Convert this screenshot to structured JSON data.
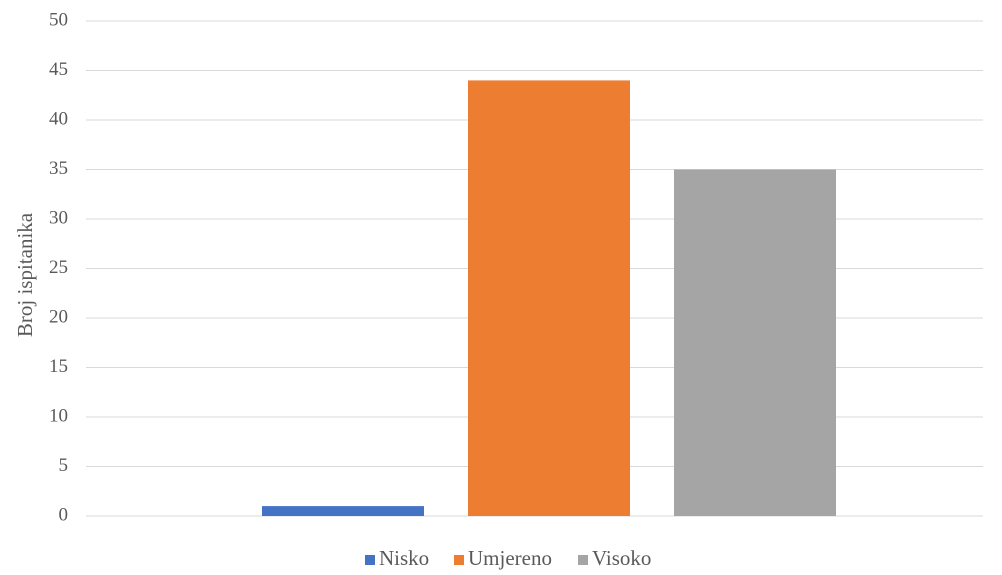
{
  "chart_data": {
    "type": "bar",
    "title": "",
    "xlabel": "",
    "ylabel": "Broj ispitanika",
    "ylim": [
      0,
      50
    ],
    "yticks": [
      0,
      5,
      10,
      15,
      20,
      25,
      30,
      35,
      40,
      45,
      50
    ],
    "grid": true,
    "legend_position": "bottom",
    "series": [
      {
        "name": "Nisko",
        "value": 1,
        "color": "#4472C4"
      },
      {
        "name": "Umjereno",
        "value": 44,
        "color": "#ED7D31"
      },
      {
        "name": "Visoko",
        "value": 35,
        "color": "#A5A5A5"
      }
    ]
  }
}
